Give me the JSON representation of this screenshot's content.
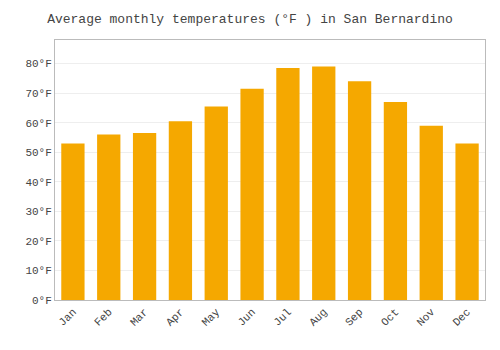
{
  "chart_data": {
    "type": "bar",
    "title": "Average monthly temperatures (°F ) in San Bernardino",
    "categories": [
      "Jan",
      "Feb",
      "Mar",
      "Apr",
      "May",
      "Jun",
      "Jul",
      "Aug",
      "Sep",
      "Oct",
      "Nov",
      "Dec"
    ],
    "values": [
      53,
      56,
      56.5,
      60.5,
      65.5,
      71.5,
      78.5,
      79,
      74,
      67,
      59,
      53
    ],
    "color": "#F5A800",
    "ylim": [
      0,
      88
    ],
    "yticks": [
      {
        "value": 0,
        "label": "0°F"
      },
      {
        "value": 10,
        "label": "10°F"
      },
      {
        "value": 20,
        "label": "20°F"
      },
      {
        "value": 30,
        "label": "30°F"
      },
      {
        "value": 40,
        "label": "40°F"
      },
      {
        "value": 50,
        "label": "50°F"
      },
      {
        "value": 60,
        "label": "60°F"
      },
      {
        "value": 70,
        "label": "70°F"
      },
      {
        "value": 80,
        "label": "80°F"
      }
    ],
    "grid": true
  }
}
